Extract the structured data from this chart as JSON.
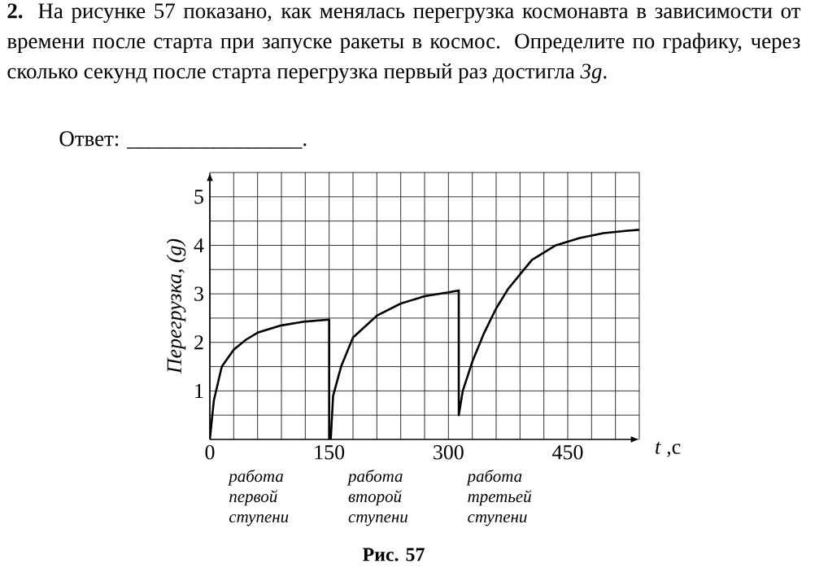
{
  "chart_data": {
    "type": "line",
    "title": "**2.** На рисунке 57 показано, как менялась перегрузка космонавта в зависимости от времени после старта при запуске ракеты в космос. Определите по графику, через сколько секунд после старта перегрузка первый раз достигла *3g*.",
    "xlabel": "*t* ,c",
    "ylabel": "Перегрузка, (g)",
    "annotations": [
      "Ответ: ________________.",
      "работа первой ступени",
      "работа второй ступени",
      "работа третьей ступени",
      "**Рис. 57**"
    ],
    "series": [
      {
        "color": "#000000",
        "x": [
          0,
          5,
          15,
          30,
          45,
          60,
          90,
          120,
          150,
          150,
          152,
          155,
          165,
          180,
          210,
          240,
          270,
          300,
          313,
          313,
          318,
          330,
          345,
          360,
          375,
          405,
          435,
          465,
          495,
          525,
          540
        ],
        "values": [
          0,
          0.8,
          1.5,
          1.85,
          2.05,
          2.2,
          2.35,
          2.43,
          2.47,
          0,
          0,
          0.9,
          1.5,
          2.1,
          2.55,
          2.8,
          2.95,
          3.03,
          3.07,
          0.5,
          1.0,
          1.6,
          2.2,
          2.7,
          3.1,
          3.7,
          4.0,
          4.15,
          4.25,
          4.3,
          4.32
        ]
      }
    ],
    "xlim": [
      0,
      540
    ],
    "ylim": [
      0,
      5.5
    ],
    "xticks": [
      0,
      {
        "value": 30,
        "label": null
      },
      {
        "value": 60,
        "label": null
      },
      {
        "value": 90,
        "label": null
      },
      {
        "value": 120,
        "label": null
      },
      150,
      {
        "value": 180,
        "label": null
      },
      {
        "value": 210,
        "label": null
      },
      {
        "value": 240,
        "label": null
      },
      {
        "value": 270,
        "label": null
      },
      300,
      {
        "value": 330,
        "label": null
      },
      {
        "value": 360,
        "label": null
      },
      {
        "value": 390,
        "label": null
      },
      {
        "value": 420,
        "label": null
      },
      450,
      {
        "value": 480,
        "label": null
      },
      {
        "value": 510,
        "label": null
      },
      {
        "value": 540,
        "label": null
      }
    ],
    "yticks": [
      {
        "value": 0.5,
        "label": null
      },
      1,
      {
        "value": 1.5,
        "label": null
      },
      2,
      {
        "value": 2.5,
        "label": null
      },
      3,
      {
        "value": 3.5,
        "label": null
      },
      4,
      {
        "value": 4.5,
        "label": null
      },
      5,
      {
        "value": 5.5,
        "label": null
      }
    ],
    "grid": true,
    "line_style": "solid"
  }
}
